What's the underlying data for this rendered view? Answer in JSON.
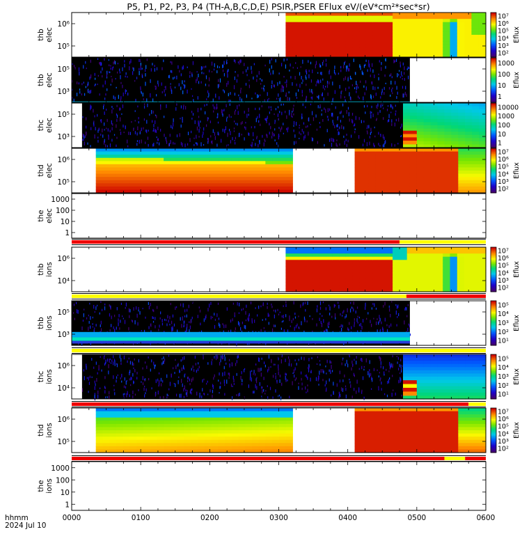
{
  "chart_data": {
    "type": "heatmap",
    "title": "P5, P1, P2, P3, P4 (TH-A,B,C,D,E) PSIR,PSER EFlux eV/(eV*cm²*sec*sr)",
    "x_ticks": [
      "0000",
      "0100",
      "0200",
      "0300",
      "0400",
      "0500",
      "0600"
    ],
    "x_range_hours": [
      0,
      6
    ],
    "x_axis_label": "hhmm",
    "x_axis_date": "2024 Jul 10",
    "y_scale": "log",
    "colormap": "rainbow",
    "panels": [
      {
        "label_top": "thb",
        "label_bottom": "elec"
      },
      {
        "label_top": "thb",
        "label_bottom": "elec"
      },
      {
        "label_top": "thc",
        "label_bottom": "elec"
      },
      {
        "label_top": "thd",
        "label_bottom": "elec"
      },
      {
        "label_top": "the",
        "label_bottom": "elec"
      },
      {
        "label_top": "thb",
        "label_bottom": "ions"
      },
      {
        "label_top": "thb",
        "label_bottom": "ions"
      },
      {
        "label_top": "thc",
        "label_bottom": "ions"
      },
      {
        "label_top": "thd",
        "label_bottom": "ions"
      },
      {
        "label_top": "the",
        "label_bottom": "ions"
      }
    ],
    "y_tick_labels": {
      "panel0": [
        "10⁶",
        "10⁵"
      ],
      "panel1": [
        "10⁵",
        "10³"
      ],
      "panel2": [
        "10⁵",
        "10³"
      ],
      "panel3": [
        "10⁶",
        "10⁵"
      ],
      "panel4": [
        "1000",
        "100",
        "10",
        "1"
      ],
      "panel5": [
        "10⁶",
        "10⁴"
      ],
      "panel6": [
        "10⁵",
        "10³"
      ],
      "panel7": [
        "10⁶",
        "10⁴"
      ],
      "panel8": [
        "10⁶",
        "10⁵"
      ],
      "panel9": [
        "1000",
        "100",
        "10",
        "1"
      ]
    },
    "colorbars": [
      {
        "label": "Eflux",
        "ticks": [
          "10⁷",
          "10⁶",
          "10⁵",
          "10⁴",
          "10³",
          "10²"
        ]
      },
      {
        "label": "Eflux",
        "ticks": [
          "1000",
          "100",
          "10",
          "1"
        ]
      },
      {
        "label": "",
        "ticks": [
          "10000",
          "1000",
          "100",
          "10",
          "1"
        ]
      },
      {
        "label": "Eflux",
        "ticks": [
          "10⁷",
          "10⁶",
          "10⁵",
          "10⁴",
          "10³",
          "10²"
        ]
      },
      {
        "label": "Eflux",
        "ticks": [
          "10⁷",
          "10⁶",
          "10⁵",
          "10⁴",
          "10³",
          "10²"
        ]
      },
      {
        "label": "Eflux",
        "ticks": [
          "10⁵",
          "10⁴",
          "10³",
          "10²",
          "10¹"
        ]
      },
      {
        "label": "Eflux",
        "ticks": [
          "10⁵",
          "10⁴",
          "10³",
          "10²",
          "10¹"
        ]
      },
      {
        "label": "Eflux",
        "ticks": [
          "10⁷",
          "10⁶",
          "10⁵",
          "10⁴",
          "10³",
          "10²"
        ]
      }
    ]
  }
}
